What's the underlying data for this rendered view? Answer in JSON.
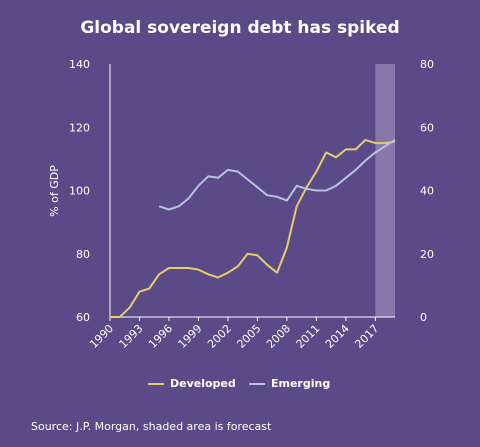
{
  "chart_data": {
    "type": "line",
    "title": "Global sovereign debt has spiked",
    "ylabel": "% of GDP",
    "ylim": [
      60,
      140
    ],
    "ylim_right": [
      0,
      80
    ],
    "xlim": [
      1990,
      2019
    ],
    "y_ticks": [
      60,
      80,
      100,
      120,
      140
    ],
    "y_ticks_right": [
      0,
      20,
      40,
      60,
      80
    ],
    "x_ticks": [
      1990,
      1993,
      1996,
      1999,
      2002,
      2005,
      2008,
      2011,
      2014,
      2017
    ],
    "forecast_region": [
      2017,
      2019
    ],
    "series": [
      {
        "name": "Developed",
        "axis": "left",
        "color": "#e8cc6a",
        "x": [
          1990,
          1991,
          1992,
          1993,
          1994,
          1995,
          1996,
          1997,
          1998,
          1999,
          2000,
          2001,
          2002,
          2003,
          2004,
          2005,
          2006,
          2007,
          2008,
          2009,
          2010,
          2011,
          2012,
          2013,
          2014,
          2015,
          2016,
          2017,
          2018,
          2019
        ],
        "values": [
          58,
          60,
          63,
          68,
          69,
          73.5,
          75.5,
          75.5,
          75.5,
          75,
          73.5,
          72.5,
          74,
          76,
          80,
          79.5,
          76.5,
          74,
          82,
          95,
          101,
          106,
          112,
          110.5,
          113,
          113,
          116,
          115,
          115,
          115.5
        ]
      },
      {
        "name": "Emerging",
        "axis": "right",
        "color": "#b6c3de",
        "x": [
          1995,
          1996,
          1997,
          1998,
          1999,
          2000,
          2001,
          2002,
          2003,
          2004,
          2005,
          2006,
          2007,
          2008,
          2009,
          2010,
          2011,
          2012,
          2013,
          2014,
          2015,
          2016,
          2017,
          2018,
          2019
        ],
        "values": [
          35,
          34,
          35,
          37.5,
          41.5,
          44.5,
          44,
          46.5,
          46,
          43.5,
          41,
          38.5,
          38,
          36.8,
          41.5,
          40.5,
          40,
          40,
          41.5,
          44,
          46.5,
          49.5,
          52,
          54,
          56
        ]
      }
    ]
  },
  "source_text": "Source: J.P. Morgan, shaded area is forecast"
}
